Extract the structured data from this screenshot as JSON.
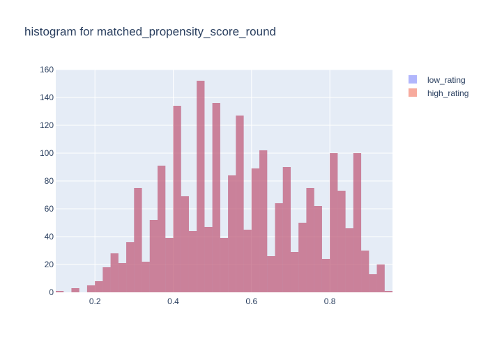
{
  "chart_data": {
    "type": "bar",
    "title": "histogram for matched_propensity_score_round",
    "xlabel": "",
    "ylabel": "",
    "xlim": [
      0.1,
      0.96
    ],
    "ylim": [
      0,
      160
    ],
    "x_ticks": [
      {
        "value": 0.2,
        "label": "0.2"
      },
      {
        "value": 0.4,
        "label": "0.4"
      },
      {
        "value": 0.6,
        "label": "0.6"
      },
      {
        "value": 0.8,
        "label": "0.8"
      }
    ],
    "y_ticks": [
      {
        "value": 0,
        "label": "0"
      },
      {
        "value": 20,
        "label": "20"
      },
      {
        "value": 40,
        "label": "40"
      },
      {
        "value": 60,
        "label": "60"
      },
      {
        "value": 80,
        "label": "80"
      },
      {
        "value": 100,
        "label": "100"
      },
      {
        "value": 120,
        "label": "120"
      },
      {
        "value": 140,
        "label": "140"
      },
      {
        "value": 160,
        "label": "160"
      }
    ],
    "bin_width": 0.02,
    "bin_starts": [
      0.1,
      0.12,
      0.14,
      0.16,
      0.18,
      0.2,
      0.22,
      0.24,
      0.26,
      0.28,
      0.3,
      0.32,
      0.34,
      0.36,
      0.38,
      0.4,
      0.42,
      0.44,
      0.46,
      0.48,
      0.5,
      0.52,
      0.54,
      0.56,
      0.58,
      0.6,
      0.62,
      0.64,
      0.66,
      0.68,
      0.7,
      0.72,
      0.74,
      0.76,
      0.78,
      0.8,
      0.82,
      0.84,
      0.86,
      0.88,
      0.9,
      0.92,
      0.94
    ],
    "series": [
      {
        "name": "low_rating",
        "color": "#636efa",
        "values": [
          1,
          0,
          3,
          0,
          5,
          8,
          18,
          28,
          21,
          36,
          75,
          22,
          52,
          91,
          39,
          134,
          69,
          44,
          152,
          47,
          136,
          39,
          84,
          127,
          45,
          89,
          102,
          26,
          64,
          90,
          29,
          50,
          75,
          62,
          24,
          100,
          73,
          46,
          100,
          30,
          13,
          20,
          1
        ]
      },
      {
        "name": "high_rating",
        "color": "#ef553b",
        "values": [
          1,
          0,
          3,
          0,
          5,
          8,
          18,
          28,
          21,
          36,
          75,
          22,
          52,
          91,
          39,
          134,
          69,
          44,
          152,
          47,
          136,
          39,
          84,
          127,
          45,
          89,
          102,
          26,
          64,
          90,
          29,
          50,
          75,
          62,
          24,
          100,
          73,
          46,
          100,
          30,
          13,
          20,
          1
        ]
      }
    ],
    "grid": true,
    "legend_position": "top-right",
    "plot_bgcolor": "#e5ecf6",
    "overlay_color": "#c47d94"
  }
}
